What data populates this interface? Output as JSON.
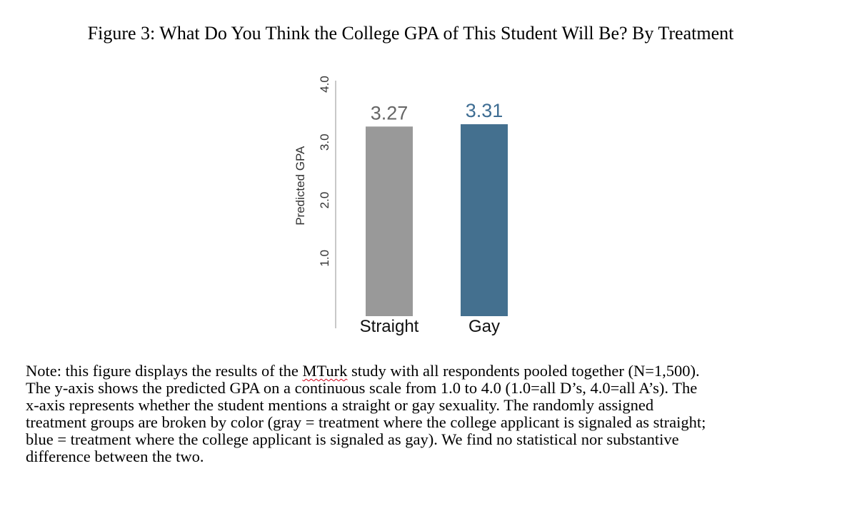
{
  "figure": {
    "title": "Figure 3: What Do You Think the College GPA of This Student Will Be? By Treatment"
  },
  "chart_data": {
    "type": "bar",
    "categories": [
      "Straight",
      "Gay"
    ],
    "values": [
      3.27,
      3.31
    ],
    "value_labels": [
      "3.27",
      "3.31"
    ],
    "colors": [
      "#999999",
      "#44708f"
    ],
    "label_colors": [
      "#666666",
      "#3e6d93"
    ],
    "title": "",
    "xlabel": "",
    "ylabel": "Predicted GPA",
    "ylim": [
      0,
      4.0
    ],
    "yticks": [
      1.0,
      2.0,
      3.0,
      4.0
    ],
    "ytick_labels": [
      "1.0",
      "2.0",
      "3.0",
      "4.0"
    ],
    "grid": false,
    "legend": "none"
  },
  "note": {
    "lines": [
      [
        "Note: this figure displays the results of the ",
        "MTurk",
        " study with all respondents pooled together (N=1,500)."
      ],
      [
        "The y-axis shows the predicted GPA on a continuous scale from 1.0 to 4.0 (1.0=all D’s, 4.0=all A’s). The"
      ],
      [
        "x-axis represents whether the student mentions a straight or gay sexuality. The randomly assigned"
      ],
      [
        "treatment groups are broken by color (gray = treatment where the college applicant is signaled as straight;"
      ],
      [
        "blue = treatment where the college applicant is signaled as gay). We find no statistical nor substantive"
      ],
      [
        "difference between the two."
      ]
    ]
  }
}
